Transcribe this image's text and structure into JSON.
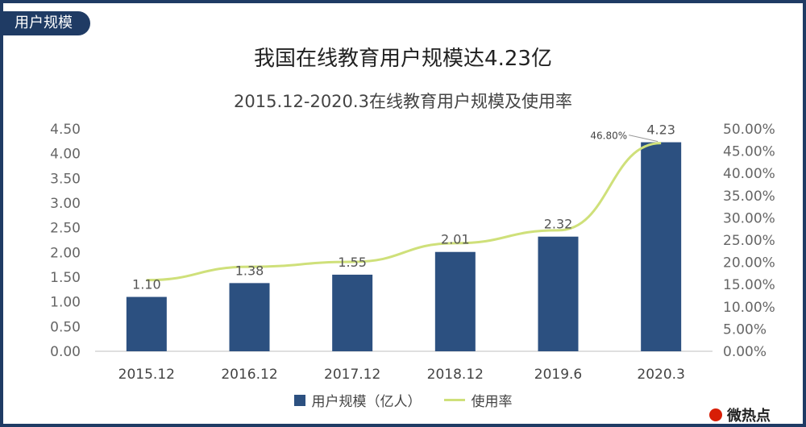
{
  "header": {
    "tag": "用户规模"
  },
  "headline": "我国在线教育用户规模达4.23亿",
  "chart_data": {
    "type": "bar",
    "title": "2015.12-2020.3在线教育用户规模及使用率",
    "categories": [
      "2015.12",
      "2016.12",
      "2017.12",
      "2018.12",
      "2019.6",
      "2020.3"
    ],
    "series": [
      {
        "name": "用户规模（亿人）",
        "type": "bar",
        "axis": "left",
        "values": [
          1.1,
          1.38,
          1.55,
          2.01,
          2.32,
          4.23
        ],
        "labels": [
          "1.10",
          "1.38",
          "1.55",
          "2.01",
          "2.32",
          "4.23"
        ]
      },
      {
        "name": "使用率",
        "type": "line",
        "axis": "right",
        "values": [
          16.0,
          19.0,
          20.1,
          24.3,
          27.2,
          46.8
        ],
        "annotation": "46.80%"
      }
    ],
    "y_left": {
      "min": 0,
      "max": 4.5,
      "ticks": [
        "0.00",
        "0.50",
        "1.00",
        "1.50",
        "2.00",
        "2.50",
        "3.00",
        "3.50",
        "4.00",
        "4.50"
      ]
    },
    "y_right": {
      "min": 0,
      "max": 50,
      "ticks": [
        "0.00%",
        "5.00%",
        "10.00%",
        "15.00%",
        "20.00%",
        "25.00%",
        "30.00%",
        "35.00%",
        "40.00%",
        "45.00%",
        "50.00%"
      ]
    },
    "grid": false,
    "legend": "bottom",
    "colors": {
      "bar": "#2c5080",
      "line": "#cfe07a"
    }
  },
  "watermark": "微热点"
}
